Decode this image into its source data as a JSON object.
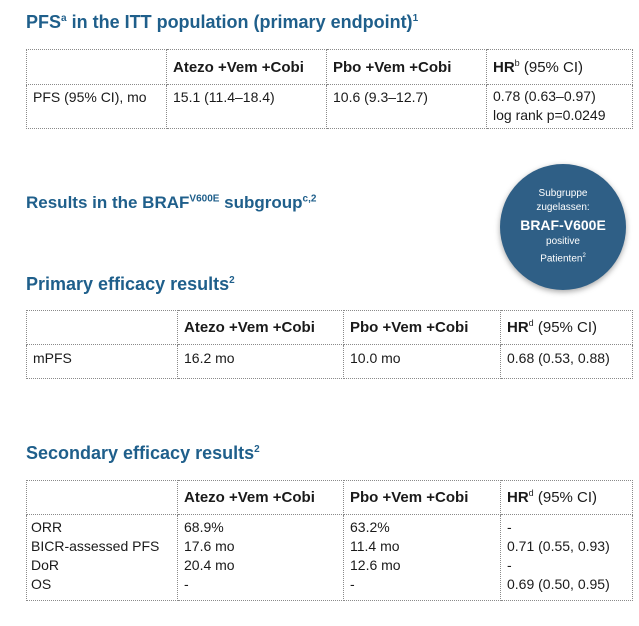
{
  "heading1": {
    "pre": "PFS",
    "sup1": "a",
    "post": " in the ITT population (primary endpoint)",
    "sup2": "1"
  },
  "heading2": {
    "pre": "Results in the BRAF",
    "sup1": "V600E",
    "post": " subgroup",
    "sup2": "c,2"
  },
  "heading3": {
    "text": "Primary efficacy results",
    "sup": "2"
  },
  "heading4": {
    "text": "Secondary efficacy results",
    "sup": "2"
  },
  "badge": {
    "line1": "Subgruppe",
    "line2": "zugelassen:",
    "line3": "BRAF-V600E",
    "line4": "positive",
    "line5": "Patienten",
    "line5_sup": "2"
  },
  "table1": {
    "headers": {
      "col1": "Atezo +Vem +Cobi",
      "col2": "Pbo +Vem +Cobi",
      "col3_main": "HR",
      "col3_sup": "b",
      "col3_ci": " (95% CI)"
    },
    "row": {
      "label": "PFS (95% CI), mo",
      "c1": "15.1 (11.4–18.4)",
      "c2": "10.6 (9.3–12.7)",
      "c3a": "0.78 (0.63–0.97)",
      "c3b": "log rank p=0.0249"
    }
  },
  "table2": {
    "headers": {
      "col1": "Atezo +Vem +Cobi",
      "col2": "Pbo +Vem +Cobi",
      "col3_main": "HR",
      "col3_sup": "d",
      "col3_ci": " (95% CI)"
    },
    "row": {
      "label": "mPFS",
      "c1": "16.2 mo",
      "c2": "10.0 mo",
      "c3": "0.68 (0.53, 0.88)"
    }
  },
  "table3": {
    "headers": {
      "col1": "Atezo +Vem +Cobi",
      "col2": "Pbo +Vem +Cobi",
      "col3_main": "HR",
      "col3_sup": "d",
      "col3_ci": " (95% CI)"
    },
    "rows": [
      {
        "label": "ORR",
        "c1": "68.9%",
        "c2": "63.2%",
        "c3": "-"
      },
      {
        "label": "BICR-assessed PFS",
        "c1": "17.6 mo",
        "c2": "11.4 mo",
        "c3": "0.71 (0.55, 0.93)"
      },
      {
        "label": "DoR",
        "c1": "20.4 mo",
        "c2": "12.6 mo",
        "c3": "-"
      },
      {
        "label": "OS",
        "c1": "-",
        "c2": "-",
        "c3": "0.69 (0.50, 0.95)"
      }
    ]
  }
}
